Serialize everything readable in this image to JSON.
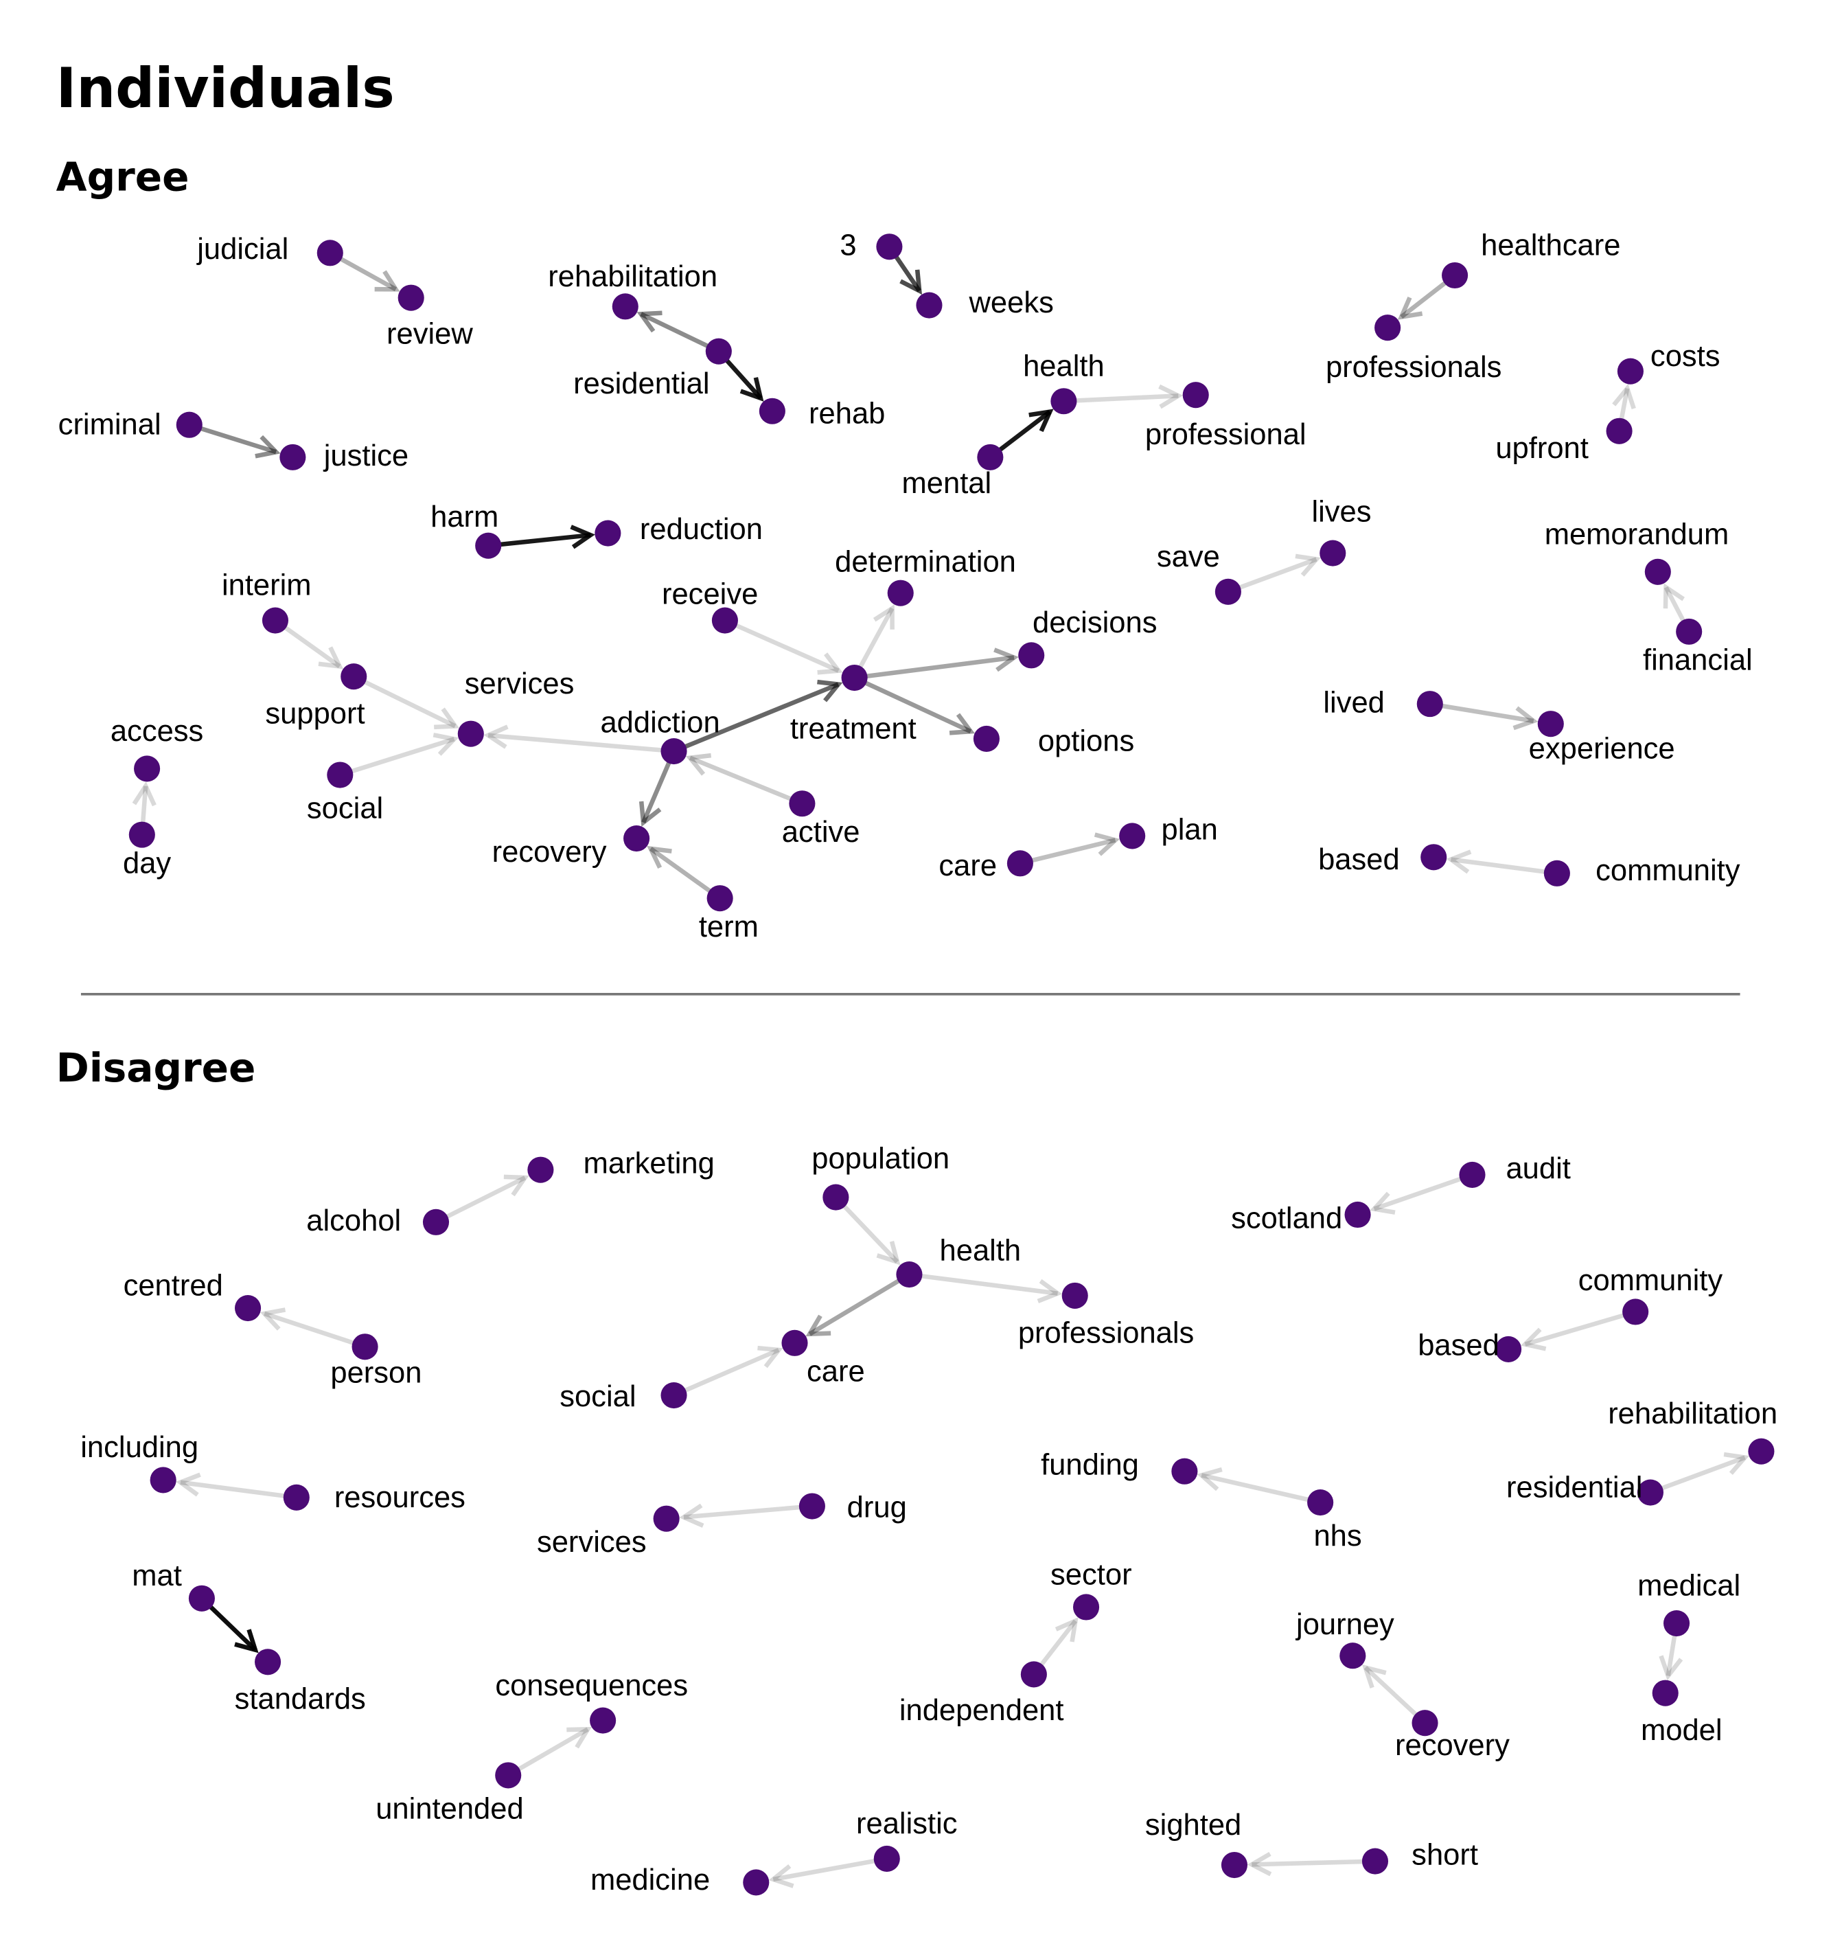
{
  "title": "Individuals",
  "node_color": "#4B0A75",
  "edge_color": "#000000",
  "sections": [
    {
      "title": "Agree",
      "nodes": [
        {
          "id": "judicial",
          "label": "judicial"
        },
        {
          "id": "review",
          "label": "review"
        },
        {
          "id": "rehabilitation",
          "label": "rehabilitation"
        },
        {
          "id": "residential",
          "label": "residential"
        },
        {
          "id": "rehab",
          "label": "rehab"
        },
        {
          "id": "3",
          "label": "3"
        },
        {
          "id": "weeks",
          "label": "weeks"
        },
        {
          "id": "healthcare",
          "label": "healthcare"
        },
        {
          "id": "professionals",
          "label": "professionals"
        },
        {
          "id": "health",
          "label": "health"
        },
        {
          "id": "professional",
          "label": "professional"
        },
        {
          "id": "mental",
          "label": "mental"
        },
        {
          "id": "costs",
          "label": "costs"
        },
        {
          "id": "upfront",
          "label": "upfront"
        },
        {
          "id": "criminal",
          "label": "criminal"
        },
        {
          "id": "justice",
          "label": "justice"
        },
        {
          "id": "harm",
          "label": "harm"
        },
        {
          "id": "reduction",
          "label": "reduction"
        },
        {
          "id": "determination",
          "label": "determination"
        },
        {
          "id": "receive",
          "label": "receive"
        },
        {
          "id": "decisions",
          "label": "decisions"
        },
        {
          "id": "treatment",
          "label": "treatment"
        },
        {
          "id": "options",
          "label": "options"
        },
        {
          "id": "addiction",
          "label": "addiction"
        },
        {
          "id": "services",
          "label": "services"
        },
        {
          "id": "support",
          "label": "support"
        },
        {
          "id": "interim",
          "label": "interim"
        },
        {
          "id": "social",
          "label": "social"
        },
        {
          "id": "access",
          "label": "access"
        },
        {
          "id": "day",
          "label": "day"
        },
        {
          "id": "recovery",
          "label": "recovery"
        },
        {
          "id": "active",
          "label": "active"
        },
        {
          "id": "term",
          "label": "term"
        },
        {
          "id": "save",
          "label": "save"
        },
        {
          "id": "lives",
          "label": "lives"
        },
        {
          "id": "memorandum",
          "label": "memorandum"
        },
        {
          "id": "financial",
          "label": "financial"
        },
        {
          "id": "lived",
          "label": "lived"
        },
        {
          "id": "experience",
          "label": "experience"
        },
        {
          "id": "care",
          "label": "care"
        },
        {
          "id": "plan",
          "label": "plan"
        },
        {
          "id": "based",
          "label": "based"
        },
        {
          "id": "community",
          "label": "community"
        }
      ],
      "edges": [
        {
          "from": "judicial",
          "to": "review",
          "strength": 0.3
        },
        {
          "from": "residential",
          "to": "rehabilitation",
          "strength": 0.45
        },
        {
          "from": "residential",
          "to": "rehab",
          "strength": 0.9
        },
        {
          "from": "3",
          "to": "weeks",
          "strength": 0.7
        },
        {
          "from": "healthcare",
          "to": "professionals",
          "strength": 0.3
        },
        {
          "from": "mental",
          "to": "health",
          "strength": 0.9
        },
        {
          "from": "health",
          "to": "professional",
          "strength": 0.15
        },
        {
          "from": "upfront",
          "to": "costs",
          "strength": 0.15
        },
        {
          "from": "criminal",
          "to": "justice",
          "strength": 0.45
        },
        {
          "from": "harm",
          "to": "reduction",
          "strength": 0.9
        },
        {
          "from": "receive",
          "to": "treatment",
          "strength": 0.15
        },
        {
          "from": "treatment",
          "to": "determination",
          "strength": 0.15
        },
        {
          "from": "treatment",
          "to": "decisions",
          "strength": 0.35
        },
        {
          "from": "treatment",
          "to": "options",
          "strength": 0.4
        },
        {
          "from": "addiction",
          "to": "treatment",
          "strength": 0.6
        },
        {
          "from": "addiction",
          "to": "services",
          "strength": 0.15
        },
        {
          "from": "addiction",
          "to": "recovery",
          "strength": 0.45
        },
        {
          "from": "active",
          "to": "addiction",
          "strength": 0.2
        },
        {
          "from": "term",
          "to": "recovery",
          "strength": 0.3
        },
        {
          "from": "interim",
          "to": "support",
          "strength": 0.15
        },
        {
          "from": "support",
          "to": "services",
          "strength": 0.15
        },
        {
          "from": "social",
          "to": "services",
          "strength": 0.15
        },
        {
          "from": "day",
          "to": "access",
          "strength": 0.15
        },
        {
          "from": "save",
          "to": "lives",
          "strength": 0.15
        },
        {
          "from": "financial",
          "to": "memorandum",
          "strength": 0.15
        },
        {
          "from": "lived",
          "to": "experience",
          "strength": 0.25
        },
        {
          "from": "care",
          "to": "plan",
          "strength": 0.25
        },
        {
          "from": "community",
          "to": "based",
          "strength": 0.15
        }
      ]
    },
    {
      "title": "Disagree",
      "nodes": [
        {
          "id": "marketing",
          "label": "marketing"
        },
        {
          "id": "alcohol",
          "label": "alcohol"
        },
        {
          "id": "population",
          "label": "population"
        },
        {
          "id": "health",
          "label": "health"
        },
        {
          "id": "professionals",
          "label": "professionals"
        },
        {
          "id": "social",
          "label": "social"
        },
        {
          "id": "care",
          "label": "care"
        },
        {
          "id": "audit",
          "label": "audit"
        },
        {
          "id": "scotland",
          "label": "scotland"
        },
        {
          "id": "centred",
          "label": "centred"
        },
        {
          "id": "person",
          "label": "person"
        },
        {
          "id": "community",
          "label": "community"
        },
        {
          "id": "based",
          "label": "based"
        },
        {
          "id": "including",
          "label": "including"
        },
        {
          "id": "resources",
          "label": "resources"
        },
        {
          "id": "funding",
          "label": "funding"
        },
        {
          "id": "nhs",
          "label": "nhs"
        },
        {
          "id": "rehabilitation",
          "label": "rehabilitation"
        },
        {
          "id": "residential",
          "label": "residential"
        },
        {
          "id": "services",
          "label": "services"
        },
        {
          "id": "drug",
          "label": "drug"
        },
        {
          "id": "mat",
          "label": "mat"
        },
        {
          "id": "standards",
          "label": "standards"
        },
        {
          "id": "sector",
          "label": "sector"
        },
        {
          "id": "independent",
          "label": "independent"
        },
        {
          "id": "journey",
          "label": "journey"
        },
        {
          "id": "recovery",
          "label": "recovery"
        },
        {
          "id": "medical",
          "label": "medical"
        },
        {
          "id": "model",
          "label": "model"
        },
        {
          "id": "consequences",
          "label": "consequences"
        },
        {
          "id": "unintended",
          "label": "unintended"
        },
        {
          "id": "realistic",
          "label": "realistic"
        },
        {
          "id": "medicine",
          "label": "medicine"
        },
        {
          "id": "sighted",
          "label": "sighted"
        },
        {
          "id": "short",
          "label": "short"
        }
      ],
      "edges": [
        {
          "from": "alcohol",
          "to": "marketing",
          "strength": 0.15
        },
        {
          "from": "population",
          "to": "health",
          "strength": 0.15
        },
        {
          "from": "health",
          "to": "professionals",
          "strength": 0.15
        },
        {
          "from": "health",
          "to": "care",
          "strength": 0.35
        },
        {
          "from": "social",
          "to": "care",
          "strength": 0.15
        },
        {
          "from": "audit",
          "to": "scotland",
          "strength": 0.15
        },
        {
          "from": "person",
          "to": "centred",
          "strength": 0.15
        },
        {
          "from": "community",
          "to": "based",
          "strength": 0.15
        },
        {
          "from": "resources",
          "to": "including",
          "strength": 0.15
        },
        {
          "from": "nhs",
          "to": "funding",
          "strength": 0.15
        },
        {
          "from": "residential",
          "to": "rehabilitation",
          "strength": 0.15
        },
        {
          "from": "drug",
          "to": "services",
          "strength": 0.15
        },
        {
          "from": "mat",
          "to": "standards",
          "strength": 0.95
        },
        {
          "from": "independent",
          "to": "sector",
          "strength": 0.15
        },
        {
          "from": "recovery",
          "to": "journey",
          "strength": 0.15
        },
        {
          "from": "medical",
          "to": "model",
          "strength": 0.15
        },
        {
          "from": "unintended",
          "to": "consequences",
          "strength": 0.15
        },
        {
          "from": "realistic",
          "to": "medicine",
          "strength": 0.15
        },
        {
          "from": "short",
          "to": "sighted",
          "strength": 0.15
        }
      ]
    }
  ]
}
